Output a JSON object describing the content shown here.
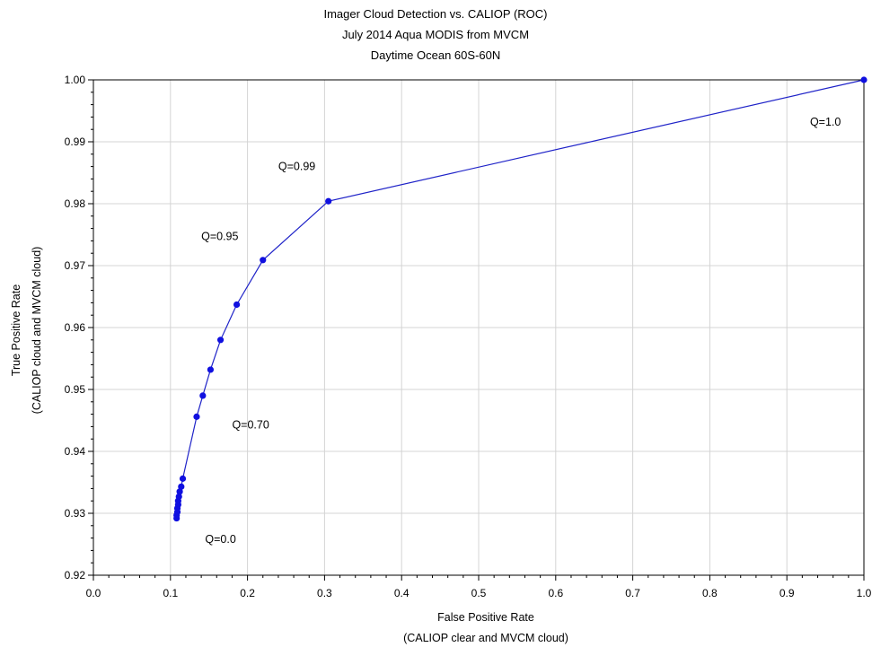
{
  "chart_data": {
    "type": "line",
    "title_lines": [
      "Imager Cloud Detection vs. CALIOP (ROC)",
      "July 2014 Aqua MODIS from MVCM",
      "Daytime Ocean 60S-60N"
    ],
    "xlabel_lines": [
      "False Positive Rate",
      "(CALIOP clear and MVCM cloud)"
    ],
    "ylabel_lines": [
      "True Positive Rate",
      "(CALIOP cloud and MVCM cloud)"
    ],
    "xlim": [
      0.0,
      1.0
    ],
    "ylim": [
      0.92,
      1.0
    ],
    "x_ticks": [
      "0.0",
      "0.1",
      "0.2",
      "0.3",
      "0.4",
      "0.5",
      "0.6",
      "0.7",
      "0.8",
      "0.9",
      "1.0"
    ],
    "y_ticks": [
      "0.92",
      "0.93",
      "0.94",
      "0.95",
      "0.96",
      "0.97",
      "0.98",
      "0.99",
      "1.00"
    ],
    "grid": true,
    "line_color": "#1f23c8",
    "marker_color": "#1010e0",
    "series": [
      {
        "x": [
          0.108,
          0.108,
          0.109,
          0.109,
          0.11,
          0.11,
          0.111,
          0.112,
          0.114,
          0.116,
          0.134,
          0.142,
          0.152,
          0.165,
          0.186,
          0.22,
          0.305,
          1.0
        ],
        "y": [
          0.9292,
          0.9297,
          0.9302,
          0.9308,
          0.9314,
          0.932,
          0.9327,
          0.9335,
          0.9343,
          0.9356,
          0.9456,
          0.949,
          0.9532,
          0.958,
          0.9637,
          0.9709,
          0.9804,
          1.0
        ]
      }
    ],
    "annotations": [
      {
        "text": "Q=1.0",
        "x": 0.93,
        "y": 0.9932
      },
      {
        "text": "Q=0.99",
        "x": 0.24,
        "y": 0.986
      },
      {
        "text": "Q=0.95",
        "x": 0.14,
        "y": 0.9747
      },
      {
        "text": "Q=0.70",
        "x": 0.18,
        "y": 0.9443
      },
      {
        "text": "Q=0.0",
        "x": 0.145,
        "y": 0.9258
      }
    ]
  }
}
